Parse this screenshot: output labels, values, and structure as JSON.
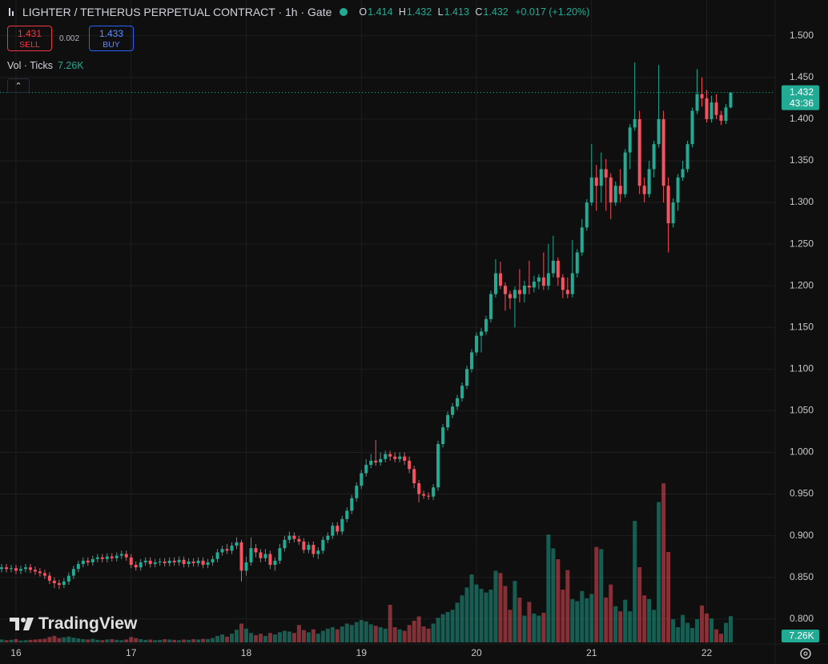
{
  "chart_data": {
    "type": "candlestick",
    "title": "LIGHTER / TETHERUS PERPETUAL CONTRACT · 1h · Gate",
    "legend_labels": {
      "open": "O",
      "high": "H",
      "low": "L",
      "close": "C"
    },
    "change_label": "+0.017 (+1.20%)",
    "countdown": "43:36",
    "up_color": "#22ab94",
    "down_color": "#f7525f",
    "grid": true,
    "ylim": [
      0.77,
      1.543
    ],
    "yticks": [
      {
        "value": 0.8,
        "label": "0.800"
      },
      {
        "value": 0.85,
        "label": "0.850"
      },
      {
        "value": 0.9,
        "label": "0.900"
      },
      {
        "value": 0.95,
        "label": "0.950"
      },
      {
        "value": 1.0,
        "label": "1.000"
      },
      {
        "value": 1.05,
        "label": "1.050"
      },
      {
        "value": 1.1,
        "label": "1.100"
      },
      {
        "value": 1.15,
        "label": "1.150"
      },
      {
        "value": 1.2,
        "label": "1.200"
      },
      {
        "value": 1.25,
        "label": "1.250"
      },
      {
        "value": 1.3,
        "label": "1.300"
      },
      {
        "value": 1.35,
        "label": "1.350"
      },
      {
        "value": 1.4,
        "label": "1.400"
      },
      {
        "value": 1.45,
        "label": "1.450"
      },
      {
        "value": 1.5,
        "label": "1.500"
      }
    ],
    "categories": [
      null,
      null,
      null,
      "16",
      null,
      null,
      null,
      null,
      null,
      null,
      null,
      null,
      null,
      null,
      null,
      null,
      null,
      null,
      null,
      null,
      null,
      null,
      null,
      null,
      null,
      null,
      null,
      "17",
      null,
      null,
      null,
      null,
      null,
      null,
      null,
      null,
      null,
      null,
      null,
      null,
      null,
      null,
      null,
      null,
      null,
      null,
      null,
      null,
      null,
      null,
      null,
      "18",
      null,
      null,
      null,
      null,
      null,
      null,
      null,
      null,
      null,
      null,
      null,
      null,
      null,
      null,
      null,
      null,
      null,
      null,
      null,
      null,
      null,
      null,
      null,
      "19",
      null,
      null,
      null,
      null,
      null,
      null,
      null,
      null,
      null,
      null,
      null,
      null,
      null,
      null,
      null,
      null,
      null,
      null,
      null,
      null,
      null,
      null,
      null,
      "20",
      null,
      null,
      null,
      null,
      null,
      null,
      null,
      null,
      null,
      null,
      null,
      null,
      null,
      null,
      null,
      null,
      null,
      null,
      null,
      null,
      null,
      null,
      null,
      "21",
      null,
      null,
      null,
      null,
      null,
      null,
      null,
      null,
      null,
      null,
      null,
      null,
      null,
      null,
      null,
      null,
      null,
      null,
      null,
      null,
      null,
      null,
      null,
      "22",
      null,
      null,
      null,
      null,
      null
    ],
    "open": [
      0.86,
      0.862,
      0.86,
      0.861,
      0.858,
      0.86,
      0.862,
      0.859,
      0.857,
      0.855,
      0.852,
      0.846,
      0.843,
      0.841,
      0.845,
      0.852,
      0.86,
      0.866,
      0.87,
      0.868,
      0.872,
      0.874,
      0.872,
      0.875,
      0.873,
      0.876,
      0.878,
      0.874,
      0.865,
      0.862,
      0.868,
      0.87,
      0.866,
      0.868,
      0.869,
      0.867,
      0.87,
      0.868,
      0.871,
      0.866,
      0.869,
      0.867,
      0.87,
      0.865,
      0.868,
      0.872,
      0.88,
      0.884,
      0.882,
      0.888,
      0.892,
      0.858,
      0.868,
      0.885,
      0.88,
      0.873,
      0.878,
      0.865,
      0.87,
      0.885,
      0.895,
      0.9,
      0.896,
      0.893,
      0.883,
      0.889,
      0.878,
      0.882,
      0.895,
      0.9,
      0.912,
      0.905,
      0.92,
      0.93,
      0.945,
      0.96,
      0.975,
      0.985,
      0.99,
      0.988,
      0.992,
      0.998,
      0.995,
      0.992,
      0.995,
      0.99,
      0.98,
      0.963,
      0.95,
      0.948,
      0.947,
      0.958,
      1.01,
      1.03,
      1.045,
      1.055,
      1.065,
      1.08,
      1.1,
      1.12,
      1.14,
      1.145,
      1.16,
      1.19,
      1.215,
      1.2,
      1.19,
      1.185,
      1.195,
      1.19,
      1.2,
      1.198,
      1.205,
      1.21,
      1.2,
      1.215,
      1.23,
      1.21,
      1.195,
      1.19,
      1.215,
      1.24,
      1.27,
      1.3,
      1.33,
      1.32,
      1.34,
      1.33,
      1.3,
      1.32,
      1.31,
      1.36,
      1.39,
      1.4,
      1.32,
      1.31,
      1.34,
      1.37,
      1.4,
      1.32,
      1.275,
      1.3,
      1.33,
      1.34,
      1.37,
      1.41,
      1.43,
      1.425,
      1.4,
      1.42,
      1.405,
      1.398,
      1.414
    ],
    "high": [
      0.866,
      0.866,
      0.865,
      0.865,
      0.864,
      0.866,
      0.866,
      0.863,
      0.861,
      0.859,
      0.856,
      0.85,
      0.847,
      0.849,
      0.856,
      0.864,
      0.87,
      0.874,
      0.874,
      0.876,
      0.878,
      0.878,
      0.879,
      0.879,
      0.88,
      0.882,
      0.882,
      0.878,
      0.869,
      0.872,
      0.874,
      0.874,
      0.872,
      0.873,
      0.873,
      0.874,
      0.874,
      0.875,
      0.875,
      0.873,
      0.873,
      0.874,
      0.874,
      0.872,
      0.876,
      0.884,
      0.888,
      0.89,
      0.892,
      0.898,
      0.895,
      0.875,
      0.898,
      0.89,
      0.884,
      0.884,
      0.882,
      0.874,
      0.89,
      0.9,
      0.905,
      0.904,
      0.9,
      0.897,
      0.893,
      0.893,
      0.886,
      0.899,
      0.904,
      0.916,
      0.916,
      0.924,
      0.934,
      0.949,
      0.964,
      0.979,
      0.992,
      0.998,
      1.015,
      1.0,
      1.002,
      1.002,
      1.0,
      1.0,
      1.0,
      0.995,
      0.984,
      0.967,
      0.954,
      0.952,
      0.962,
      1.014,
      1.034,
      1.049,
      1.059,
      1.069,
      1.084,
      1.104,
      1.124,
      1.144,
      1.149,
      1.164,
      1.194,
      1.232,
      1.229,
      1.204,
      1.194,
      1.199,
      1.22,
      1.206,
      1.23,
      1.212,
      1.214,
      1.24,
      1.25,
      1.26,
      1.234,
      1.214,
      1.21,
      1.255,
      1.244,
      1.28,
      1.304,
      1.37,
      1.345,
      1.36,
      1.352,
      1.335,
      1.325,
      1.34,
      1.364,
      1.394,
      1.468,
      1.41,
      1.33,
      1.35,
      1.374,
      1.465,
      1.41,
      1.33,
      1.305,
      1.334,
      1.35,
      1.374,
      1.414,
      1.46,
      1.45,
      1.435,
      1.428,
      1.43,
      1.41,
      1.418,
      1.432
    ],
    "low": [
      0.856,
      0.856,
      0.856,
      0.854,
      0.854,
      0.856,
      0.855,
      0.853,
      0.851,
      0.848,
      0.842,
      0.837,
      0.836,
      0.837,
      0.841,
      0.848,
      0.856,
      0.862,
      0.864,
      0.864,
      0.868,
      0.868,
      0.868,
      0.869,
      0.869,
      0.872,
      0.87,
      0.861,
      0.858,
      0.858,
      0.864,
      0.862,
      0.862,
      0.864,
      0.863,
      0.863,
      0.864,
      0.864,
      0.862,
      0.862,
      0.863,
      0.863,
      0.861,
      0.861,
      0.864,
      0.868,
      0.876,
      0.878,
      0.878,
      0.884,
      0.845,
      0.852,
      0.864,
      0.874,
      0.868,
      0.869,
      0.86,
      0.858,
      0.866,
      0.881,
      0.891,
      0.892,
      0.889,
      0.879,
      0.879,
      0.874,
      0.872,
      0.878,
      0.891,
      0.896,
      0.901,
      0.901,
      0.916,
      0.926,
      0.941,
      0.956,
      0.971,
      0.981,
      0.984,
      0.984,
      0.988,
      0.99,
      0.988,
      0.988,
      0.985,
      0.975,
      0.957,
      0.94,
      0.944,
      0.943,
      0.943,
      0.954,
      1.006,
      1.026,
      1.041,
      1.051,
      1.061,
      1.076,
      1.096,
      1.116,
      1.12,
      1.141,
      1.156,
      1.186,
      1.196,
      1.17,
      1.172,
      1.15,
      1.18,
      1.18,
      1.19,
      1.192,
      1.196,
      1.195,
      1.195,
      1.21,
      1.2,
      1.185,
      1.185,
      1.186,
      1.21,
      1.236,
      1.266,
      1.296,
      1.29,
      1.3,
      1.29,
      1.28,
      1.296,
      1.3,
      1.306,
      1.34,
      1.386,
      1.31,
      1.3,
      1.306,
      1.33,
      1.366,
      1.3,
      1.24,
      1.27,
      1.29,
      1.326,
      1.336,
      1.366,
      1.406,
      1.415,
      1.396,
      1.396,
      1.4,
      1.393,
      1.394,
      1.413
    ],
    "close": [
      0.862,
      0.86,
      0.861,
      0.858,
      0.86,
      0.862,
      0.859,
      0.857,
      0.855,
      0.852,
      0.846,
      0.843,
      0.841,
      0.845,
      0.852,
      0.86,
      0.866,
      0.87,
      0.868,
      0.872,
      0.874,
      0.872,
      0.875,
      0.873,
      0.876,
      0.878,
      0.874,
      0.865,
      0.862,
      0.868,
      0.87,
      0.866,
      0.868,
      0.869,
      0.867,
      0.87,
      0.868,
      0.871,
      0.866,
      0.869,
      0.867,
      0.87,
      0.865,
      0.868,
      0.872,
      0.88,
      0.884,
      0.882,
      0.888,
      0.892,
      0.858,
      0.868,
      0.885,
      0.88,
      0.873,
      0.878,
      0.865,
      0.87,
      0.885,
      0.895,
      0.9,
      0.896,
      0.893,
      0.883,
      0.889,
      0.878,
      0.882,
      0.895,
      0.9,
      0.912,
      0.905,
      0.92,
      0.93,
      0.945,
      0.96,
      0.975,
      0.985,
      0.99,
      0.988,
      0.992,
      0.998,
      0.995,
      0.992,
      0.995,
      0.99,
      0.98,
      0.963,
      0.95,
      0.948,
      0.947,
      0.958,
      1.01,
      1.03,
      1.045,
      1.055,
      1.065,
      1.08,
      1.1,
      1.12,
      1.14,
      1.145,
      1.16,
      1.19,
      1.215,
      1.2,
      1.19,
      1.185,
      1.195,
      1.19,
      1.2,
      1.198,
      1.205,
      1.21,
      1.2,
      1.215,
      1.23,
      1.21,
      1.195,
      1.19,
      1.215,
      1.24,
      1.27,
      1.3,
      1.33,
      1.32,
      1.34,
      1.33,
      1.3,
      1.32,
      1.31,
      1.36,
      1.39,
      1.4,
      1.32,
      1.31,
      1.34,
      1.37,
      1.4,
      1.32,
      1.275,
      1.3,
      1.33,
      1.34,
      1.37,
      1.41,
      1.43,
      1.425,
      1.4,
      1.42,
      1.405,
      1.398,
      1.414,
      1.432
    ],
    "volume": {
      "name": "Vol · Ticks",
      "ylim": [
        0,
        50000
      ],
      "values": [
        800,
        600,
        700,
        900,
        500,
        600,
        700,
        800,
        900,
        1000,
        1500,
        1800,
        1200,
        1400,
        1600,
        1300,
        1100,
        900,
        800,
        1000,
        700,
        600,
        800,
        900,
        700,
        600,
        800,
        1500,
        1200,
        900,
        700,
        800,
        600,
        700,
        900,
        800,
        700,
        600,
        800,
        700,
        900,
        800,
        1000,
        900,
        1200,
        1800,
        2200,
        1600,
        2400,
        3500,
        5200,
        3800,
        2600,
        2000,
        2400,
        1800,
        2600,
        2200,
        2800,
        3200,
        3000,
        2600,
        4800,
        3400,
        2800,
        3600,
        2400,
        3200,
        3800,
        4200,
        3600,
        4400,
        5200,
        4800,
        5600,
        6200,
        5800,
        5000,
        4600,
        4200,
        3800,
        10400,
        4200,
        3600,
        3200,
        4800,
        6000,
        7200,
        4400,
        3800,
        5200,
        6800,
        7800,
        8400,
        9000,
        11000,
        13000,
        15200,
        18800,
        16000,
        14800,
        13800,
        14600,
        19800,
        19200,
        15600,
        9000,
        17000,
        12400,
        7400,
        11200,
        8000,
        7400,
        8200,
        29800,
        26000,
        23000,
        14600,
        20000,
        12000,
        11400,
        14200,
        12200,
        13400,
        26400,
        25800,
        12400,
        16000,
        10000,
        8600,
        11800,
        8600,
        33600,
        20800,
        13000,
        12000,
        9000,
        38800,
        44000,
        25000,
        6400,
        4200,
        7600,
        5400,
        4000,
        6400,
        10200,
        8000,
        6600,
        3600,
        2400,
        5400,
        7260
      ],
      "value_labels": [
        null,
        null,
        null,
        null,
        null,
        null,
        null,
        null,
        null,
        null,
        null,
        null,
        null,
        null,
        null,
        null,
        null,
        null,
        null,
        null,
        null,
        null,
        null,
        null,
        null,
        null,
        null,
        null,
        null,
        null,
        null,
        null,
        null,
        null,
        null,
        null,
        null,
        null,
        null,
        null,
        null,
        null,
        null,
        null,
        null,
        null,
        null,
        null,
        null,
        null,
        null,
        null,
        null,
        null,
        null,
        null,
        null,
        null,
        null,
        null,
        null,
        null,
        null,
        null,
        null,
        null,
        null,
        null,
        null,
        null,
        null,
        null,
        null,
        null,
        null,
        null,
        null,
        null,
        null,
        null,
        null,
        null,
        null,
        null,
        null,
        null,
        null,
        null,
        null,
        null,
        null,
        null,
        null,
        null,
        null,
        null,
        null,
        null,
        null,
        null,
        null,
        null,
        null,
        null,
        null,
        null,
        null,
        null,
        null,
        null,
        null,
        null,
        null,
        null,
        null,
        null,
        null,
        null,
        null,
        null,
        null,
        null,
        null,
        null,
        null,
        null,
        null,
        null,
        null,
        null,
        null,
        null,
        null,
        null,
        null,
        null,
        null,
        null,
        null,
        null,
        null,
        null,
        null,
        null,
        null,
        null,
        null,
        null,
        null,
        null,
        null,
        null,
        "7.26K"
      ]
    }
  },
  "trade": {
    "sell_price": 1.431,
    "sell_label": "SELL",
    "spread": 0.002,
    "buy_price": 1.433,
    "buy_label": "BUY"
  },
  "watermark": "TradingView"
}
